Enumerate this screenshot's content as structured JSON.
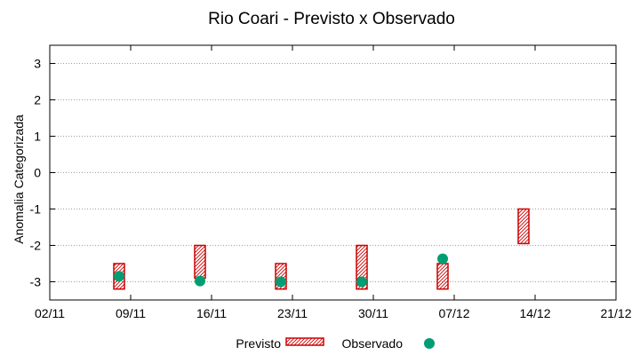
{
  "chart_data": {
    "type": "scatter",
    "title": "Rio Coari - Previsto x Observado",
    "xlabel": "",
    "ylabel": "Anomalia Categorizada",
    "x_ticks": [
      "02/11",
      "09/11",
      "16/11",
      "23/11",
      "30/11",
      "07/12",
      "14/12",
      "21/12"
    ],
    "y_ticks": [
      3,
      2,
      1,
      0,
      -1,
      -2,
      -3
    ],
    "ylim": [
      -3.5,
      3.5
    ],
    "grid": true,
    "legend": "bottom",
    "series": [
      {
        "name": "Previsto",
        "kind": "range-box",
        "color": "#cc0000",
        "points": [
          {
            "x": "2024-11-08",
            "low": -3.2,
            "high": -2.5
          },
          {
            "x": "2024-11-15",
            "low": -2.9,
            "high": -2.0
          },
          {
            "x": "2024-11-22",
            "low": -3.2,
            "high": -2.5
          },
          {
            "x": "2024-11-29",
            "low": -3.2,
            "high": -2.0
          },
          {
            "x": "2024-12-06",
            "low": -3.2,
            "high": -2.5
          },
          {
            "x": "2024-12-13",
            "low": -1.95,
            "high": -1.0
          }
        ]
      },
      {
        "name": "Observado",
        "kind": "point",
        "color": "#009e73",
        "points": [
          {
            "x": "2024-11-08",
            "y": -2.85
          },
          {
            "x": "2024-11-15",
            "y": -2.98
          },
          {
            "x": "2024-11-22",
            "y": -3.0
          },
          {
            "x": "2024-11-29",
            "y": -3.0
          },
          {
            "x": "2024-12-06",
            "y": -2.37
          }
        ]
      }
    ]
  }
}
